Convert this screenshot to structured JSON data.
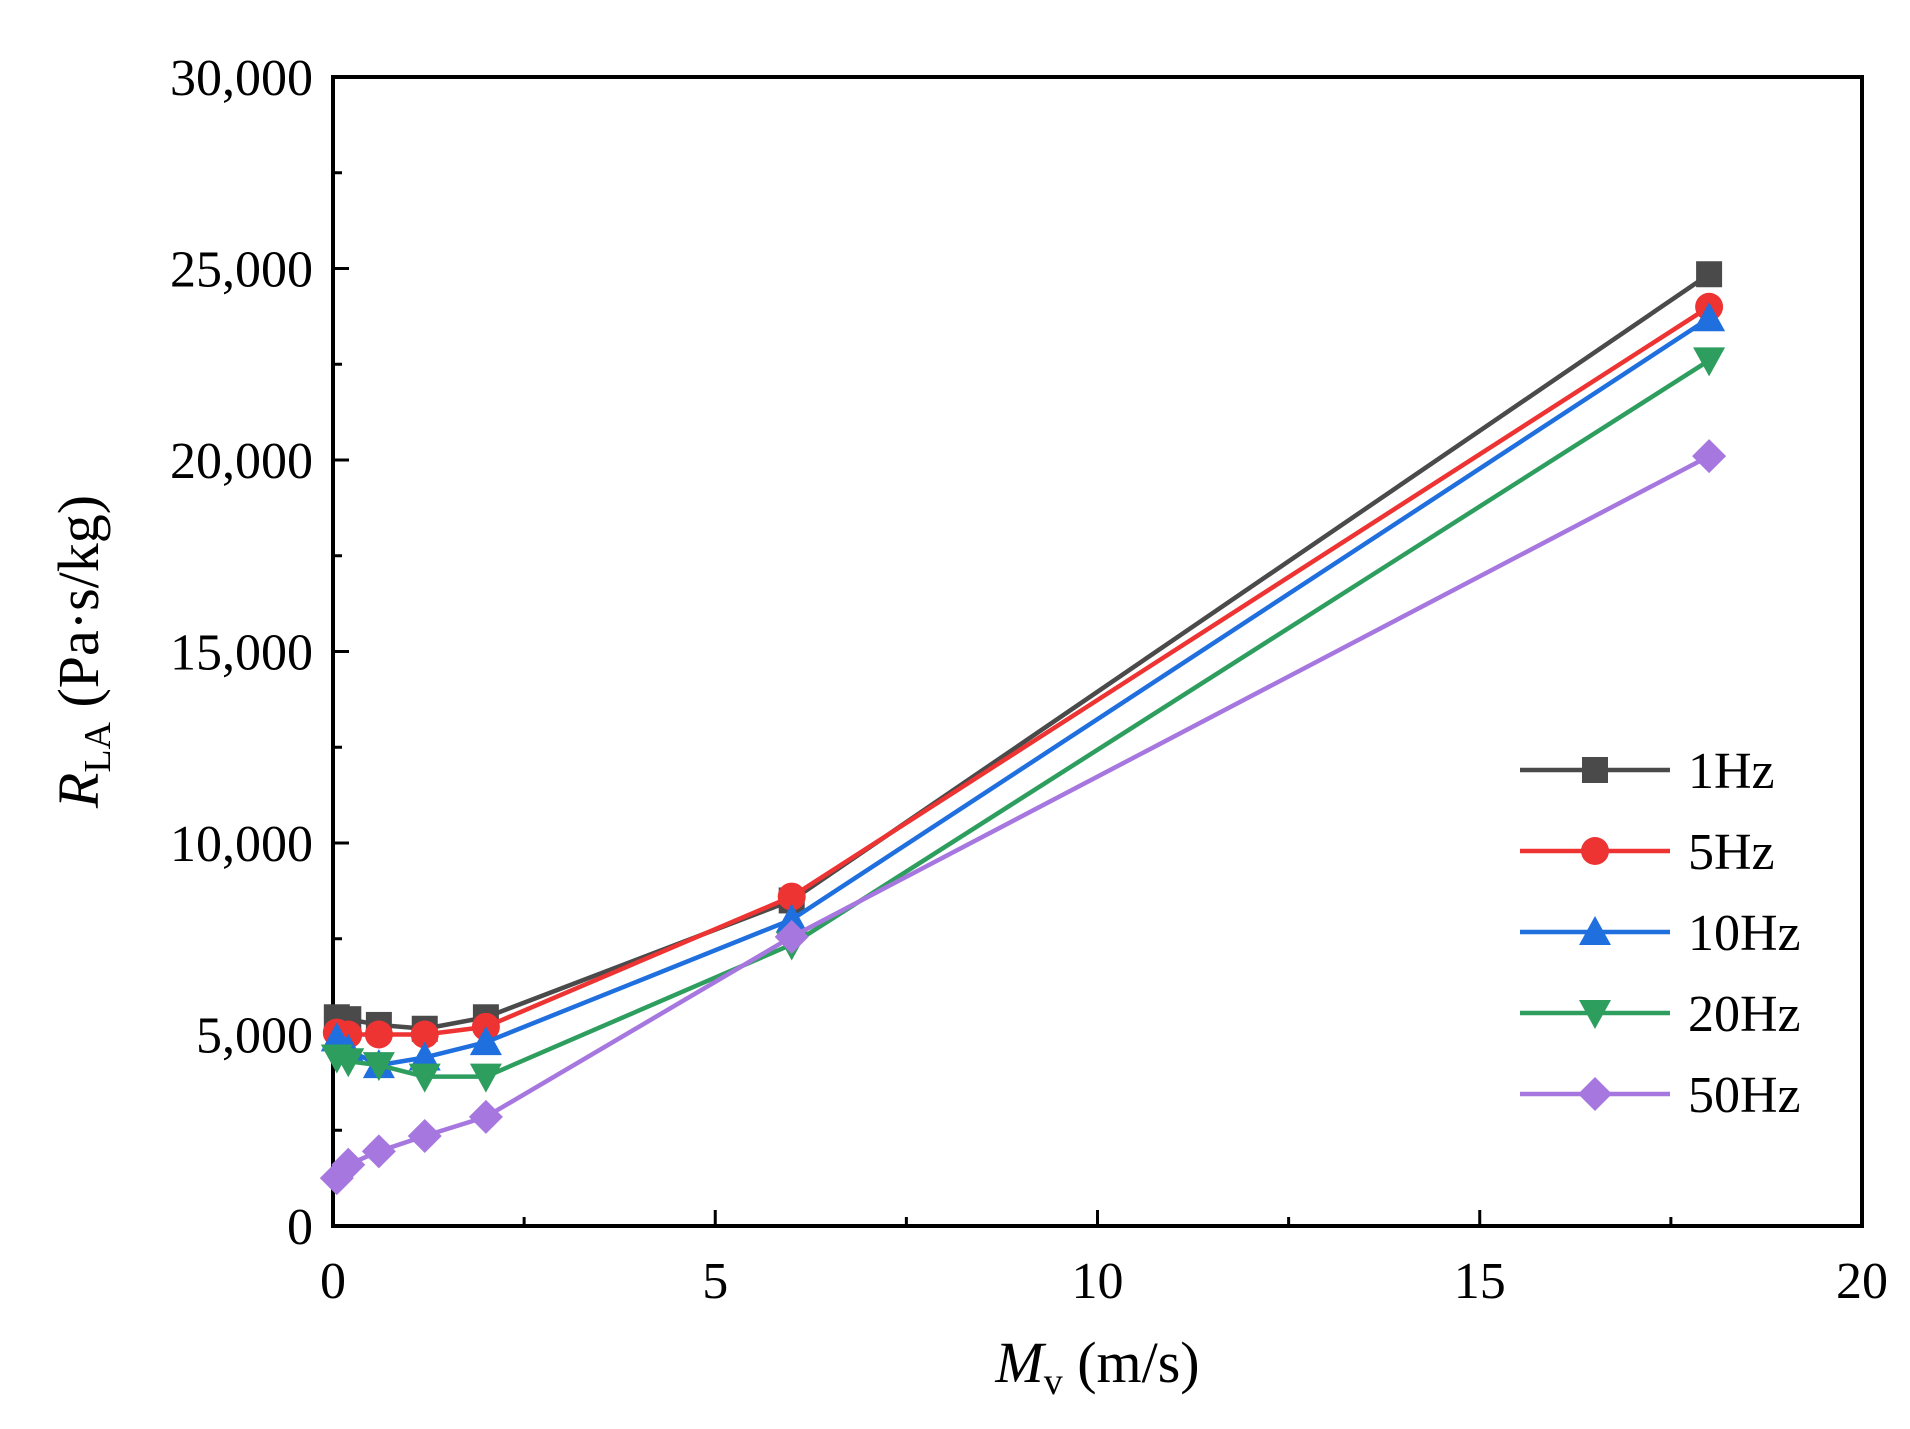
{
  "chart_data": {
    "type": "line",
    "title": "",
    "xlabel": {
      "symbol": "M",
      "subscript": "v",
      "unit": "(m/s)"
    },
    "ylabel": {
      "symbol": "R",
      "subscript": "LA",
      "unit": "(Pa·s/kg)"
    },
    "xlim": [
      0,
      20
    ],
    "ylim": [
      0,
      30000
    ],
    "x_ticks": [
      0,
      5,
      10,
      15,
      20
    ],
    "x_tick_labels": [
      "0",
      "5",
      "10",
      "15",
      "20"
    ],
    "y_ticks": [
      0,
      5000,
      10000,
      15000,
      20000,
      25000,
      30000
    ],
    "y_tick_labels": [
      "0",
      "5,000",
      "10,000",
      "15,000",
      "20,000",
      "25,000",
      "30,000"
    ],
    "grid": false,
    "legend_position": "right",
    "x": [
      0.05,
      0.2,
      0.6,
      1.2,
      2,
      6,
      18
    ],
    "series": [
      {
        "name": "1Hz",
        "color": "#4a4a4a",
        "marker": "square",
        "values": [
          5450,
          5400,
          5250,
          5150,
          5450,
          8500,
          24850
        ]
      },
      {
        "name": "5Hz",
        "color": "#ee3333",
        "marker": "circle",
        "values": [
          5050,
          5000,
          5000,
          5000,
          5200,
          8600,
          24000
        ]
      },
      {
        "name": "10Hz",
        "color": "#1f6fdf",
        "marker": "triangle-up",
        "values": [
          4900,
          4600,
          4200,
          4400,
          4800,
          8000,
          23700
        ]
      },
      {
        "name": "20Hz",
        "color": "#2e9e5f",
        "marker": "triangle-down",
        "values": [
          4400,
          4300,
          4200,
          3900,
          3900,
          7350,
          22600
        ]
      },
      {
        "name": "50Hz",
        "color": "#a777e0",
        "marker": "diamond",
        "values": [
          1250,
          1600,
          1950,
          2350,
          2850,
          7550,
          20100
        ]
      }
    ]
  }
}
